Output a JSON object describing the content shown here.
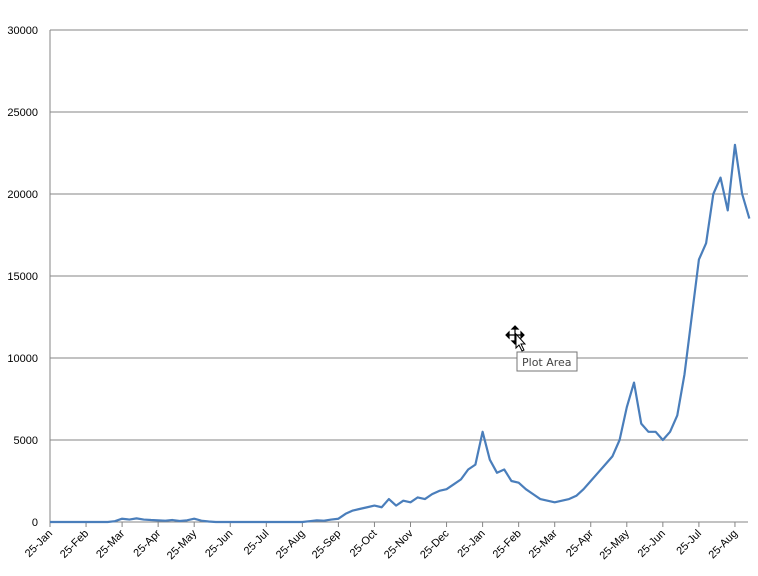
{
  "chart_data": {
    "type": "line",
    "categories": [
      "25-Jan",
      null,
      null,
      null,
      null,
      "25-Feb",
      null,
      null,
      null,
      null,
      "25-Mar",
      null,
      null,
      null,
      null,
      "25-Apr",
      null,
      null,
      null,
      null,
      "25-May",
      null,
      null,
      null,
      null,
      "25-Jun",
      null,
      null,
      null,
      null,
      "25-Jul",
      null,
      null,
      null,
      null,
      "25-Aug",
      null,
      null,
      null,
      null,
      "25-Sep",
      null,
      null,
      null,
      null,
      "25-Oct",
      null,
      null,
      null,
      null,
      "25-Nov",
      null,
      null,
      null,
      null,
      "25-Dec",
      null,
      null,
      null,
      null,
      "25-Jan",
      null,
      null,
      null,
      null,
      "25-Feb",
      null,
      null,
      null,
      null,
      "25-Mar",
      null,
      null,
      null,
      null,
      "25-Apr",
      null,
      null,
      null,
      null,
      "25-May",
      null,
      null,
      null,
      null,
      "25-Jun",
      null,
      null,
      null,
      null,
      "25-Jul",
      null,
      null,
      null,
      null,
      "25-Aug",
      null,
      null
    ],
    "series": [
      {
        "color": "#4a7ebb",
        "values": [
          0,
          0,
          0,
          0,
          0,
          0,
          0,
          0,
          0,
          50,
          200,
          150,
          220,
          150,
          120,
          100,
          80,
          120,
          60,
          100,
          200,
          80,
          30,
          0,
          0,
          0,
          0,
          0,
          0,
          0,
          0,
          0,
          0,
          0,
          0,
          0,
          50,
          100,
          80,
          150,
          200,
          500,
          700,
          800,
          900,
          1000,
          900,
          1400,
          1000,
          1300,
          1200,
          1500,
          1400,
          1700,
          1900,
          2000,
          2300,
          2600,
          3200,
          3500,
          5500,
          3800,
          3000,
          3200,
          2500,
          2400,
          2000,
          1700,
          1400,
          1300,
          1200,
          1300,
          1400,
          1600,
          2000,
          2500,
          3000,
          3500,
          4000,
          5000,
          7000,
          8500,
          6000,
          5500,
          5500,
          5000,
          5500,
          6500,
          9000,
          12500,
          16000,
          17000,
          20000,
          21000,
          19000,
          23000,
          20000,
          18500
        ]
      }
    ],
    "ylim": [
      0,
      30000
    ],
    "yticks": [
      0,
      5000,
      10000,
      15000,
      20000,
      25000,
      30000
    ],
    "grid": true,
    "tooltip": "Plot Area"
  }
}
